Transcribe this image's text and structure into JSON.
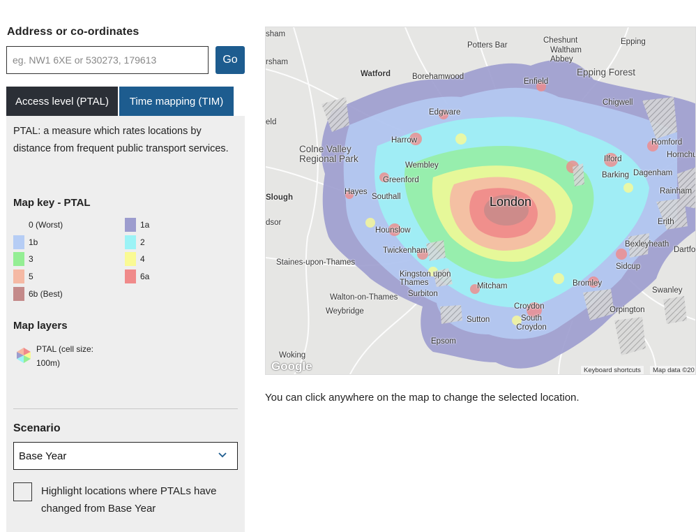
{
  "search": {
    "label": "Address or co-ordinates",
    "placeholder": "eg. NW1 6XE or 530273, 179613",
    "go_label": "Go"
  },
  "tabs": [
    {
      "label": "Access level (PTAL)",
      "active": true
    },
    {
      "label": "Time mapping (TIM)",
      "active": false
    }
  ],
  "panel": {
    "description": "PTAL: a measure which rates locations by distance from frequent public transport services.",
    "map_key_title": "Map key - PTAL",
    "map_key": [
      {
        "label": "0 (Worst)",
        "color": ""
      },
      {
        "label": "1a",
        "color": "#9c9cce"
      },
      {
        "label": "1b",
        "color": "#b6cdf5"
      },
      {
        "label": "2",
        "color": "#9cf3f6"
      },
      {
        "label": "3",
        "color": "#94ee94"
      },
      {
        "label": "4",
        "color": "#fafa94"
      },
      {
        "label": "5",
        "color": "#f5b9a4"
      },
      {
        "label": "6a",
        "color": "#f08a8a"
      },
      {
        "label": "6b (Best)",
        "color": "#c48a8a"
      }
    ],
    "map_layers_title": "Map layers",
    "layer_label": "PTAL (cell size: 100m)",
    "scenario_title": "Scenario",
    "scenario_value": "Base Year",
    "highlight_label": "Highlight locations where PTALs have changed from Base Year"
  },
  "map": {
    "labels": {
      "london": "London",
      "watford": "Watford",
      "potters_bar": "Potters Bar",
      "cheshunt": "Cheshunt",
      "waltham_abbey": "Waltham Abbey",
      "epping": "Epping",
      "epping_forest": "Epping Forest",
      "borehamwood": "Borehamwood",
      "enfield": "Enfield",
      "chigwell": "Chigwell",
      "edgware": "Edgware",
      "harrow": "Harrow",
      "romford": "Romford",
      "hornchurch": "Hornchu",
      "ilford": "Ilford",
      "barking": "Barking",
      "dagenham": "Dagenham",
      "rainham": "Rainham",
      "colne_valley": "Colne Valley Regional Park",
      "wembley": "Wembley",
      "greenford": "Greenford",
      "hayes": "Hayes",
      "southall": "Southall",
      "slough": "Slough",
      "hounslow": "Hounslow",
      "twickenham": "Twickenham",
      "staines": "Staines-upon-Thames",
      "kingston": "Kingston upon Thames",
      "surbiton": "Surbiton",
      "mitcham": "Mitcham",
      "bromley": "Bromley",
      "erith": "Erith",
      "bexleyheath": "Bexleyheath",
      "dartford": "Dartfo",
      "sidcup": "Sidcup",
      "swanley": "Swanley",
      "orpington": "Orpington",
      "croydon": "Croydon",
      "south_croydon": "South Croydon",
      "sutton": "Sutton",
      "epsom": "Epsom",
      "walton": "Walton-on-Thames",
      "weybridge": "Weybridge",
      "woking": "Woking",
      "sham": "sham",
      "rsham": "rsham",
      "eld": "eld",
      "dsor": "dsor"
    },
    "google_logo": "Google",
    "keyboard_shortcuts": "Keyboard shortcuts",
    "map_data": "Map data ©20"
  },
  "hint": "You can click anywhere on the map to change the selected location."
}
